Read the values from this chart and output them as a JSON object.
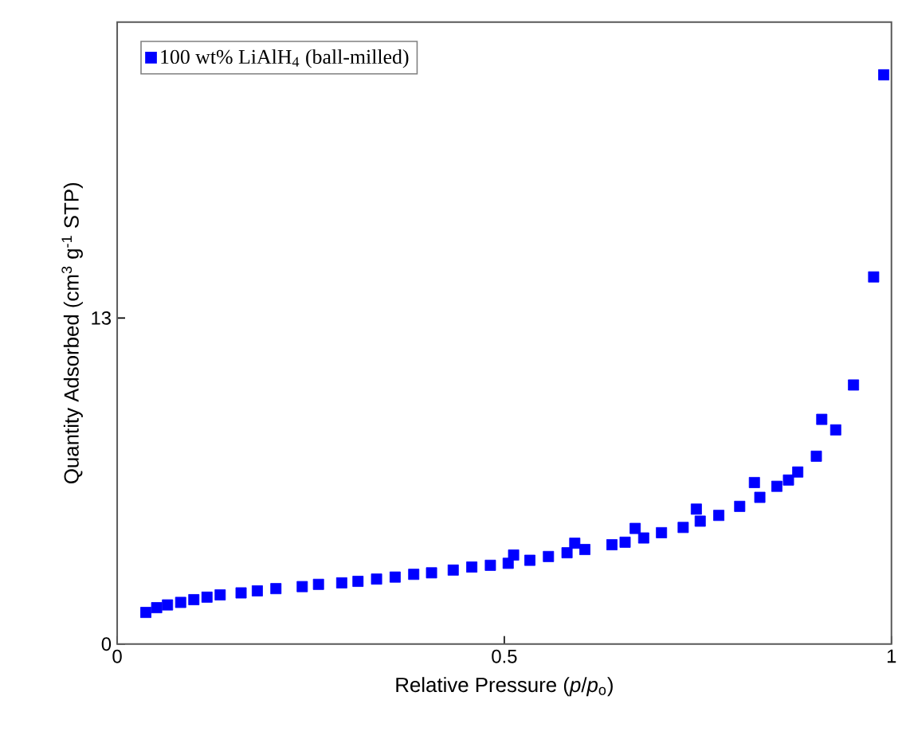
{
  "chart_data": {
    "type": "scatter",
    "xlabel": "Relative Pressure (*p*/*p*$_{o}$)",
    "ylabel": "Quantity Adsorbed (cm$^{3}$ g$^{-1}$ STP)",
    "xlim": [
      0,
      1
    ],
    "ylim": [
      0,
      24.8
    ],
    "xticks": [
      0,
      0.5,
      1
    ],
    "yticks": [
      0,
      13
    ],
    "grid": false,
    "legend": "top left",
    "marker": "square",
    "series": [
      {
        "name": "100 wt% LiAlH$_{4}$ (ball-milled)",
        "color": "#0000ff",
        "x": [
          0.037,
          0.051,
          0.065,
          0.082,
          0.099,
          0.116,
          0.133,
          0.16,
          0.181,
          0.205,
          0.239,
          0.26,
          0.29,
          0.311,
          0.335,
          0.359,
          0.383,
          0.406,
          0.434,
          0.458,
          0.482,
          0.505,
          0.512,
          0.533,
          0.557,
          0.581,
          0.591,
          0.604,
          0.639,
          0.656,
          0.669,
          0.68,
          0.703,
          0.731,
          0.748,
          0.753,
          0.777,
          0.804,
          0.823,
          0.83,
          0.852,
          0.867,
          0.879,
          0.903,
          0.91,
          0.928,
          0.951,
          0.977,
          0.99
        ],
        "values": [
          1.26,
          1.45,
          1.56,
          1.66,
          1.77,
          1.87,
          1.96,
          2.04,
          2.12,
          2.21,
          2.29,
          2.38,
          2.44,
          2.5,
          2.59,
          2.67,
          2.78,
          2.84,
          2.95,
          3.07,
          3.14,
          3.22,
          3.55,
          3.34,
          3.49,
          3.64,
          4.02,
          3.77,
          3.96,
          4.06,
          4.61,
          4.23,
          4.44,
          4.65,
          5.38,
          4.9,
          5.13,
          5.49,
          6.44,
          5.85,
          6.29,
          6.54,
          6.86,
          7.49,
          8.96,
          8.54,
          10.33,
          14.64,
          22.7
        ]
      }
    ]
  }
}
